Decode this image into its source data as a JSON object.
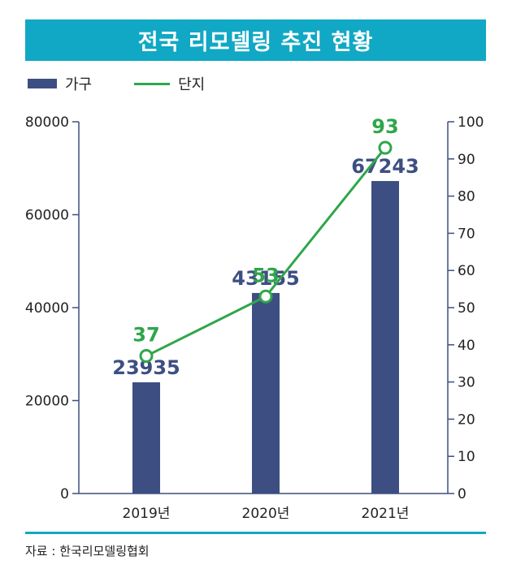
{
  "header": {
    "title": "전국 리모델링 추진 현황"
  },
  "legend": {
    "bar_label": "가구",
    "line_label": "단지"
  },
  "source": "자료 : 한국리모델링협회",
  "colors": {
    "title_bg": "#10a8c4",
    "bar": "#3d4e82",
    "line": "#2fa64a",
    "axis": "#3d4e82",
    "bar_label": "#3d4e82",
    "line_label": "#2fa64a"
  },
  "chart_data": {
    "type": "bar+line",
    "title": "전국 리모델링 추진 현황",
    "categories": [
      "2019년",
      "2020년",
      "2021년"
    ],
    "series": [
      {
        "name": "가구",
        "type": "bar",
        "axis": "left",
        "values": [
          23935,
          43155,
          67243
        ]
      },
      {
        "name": "단지",
        "type": "line",
        "axis": "right",
        "values": [
          37,
          53,
          93
        ]
      }
    ],
    "y_left": {
      "ylim": [
        0,
        80000
      ],
      "ticks": [
        0,
        20000,
        40000,
        60000,
        80000
      ]
    },
    "y_right": {
      "ylim": [
        0,
        100
      ],
      "ticks": [
        0,
        10,
        20,
        30,
        40,
        50,
        60,
        70,
        80,
        90,
        100
      ]
    },
    "legend_position": "top-left",
    "grid": false
  }
}
